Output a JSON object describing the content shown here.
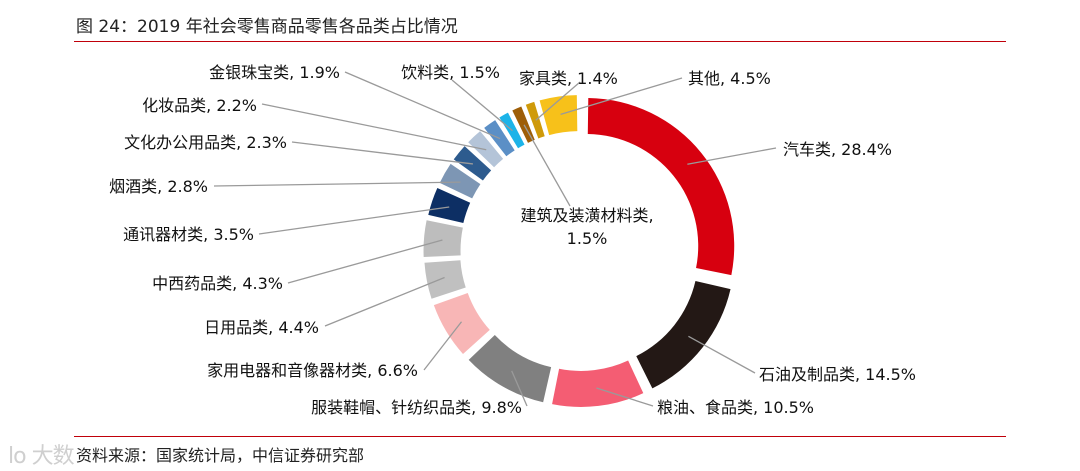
{
  "header": {
    "title": "图 24：2019 年社会零售商品零售各品类占比情况"
  },
  "footer": {
    "source": "资料来源：国家统计局，中信证券研究部",
    "watermark": "lo 大数"
  },
  "chart_data": {
    "type": "pie",
    "variant": "donut",
    "title": "图 24：2019 年社会零售商品零售各品类占比情况",
    "unit": "%",
    "slices": [
      {
        "label": "汽车类",
        "value": 28.4,
        "color": "#d7000f"
      },
      {
        "label": "石油及制品类",
        "value": 14.5,
        "color": "#231815"
      },
      {
        "label": "粮油、食品类",
        "value": 10.5,
        "color": "#f45d73"
      },
      {
        "label": "服装鞋帽、针纺织品类",
        "value": 9.8,
        "color": "#808080"
      },
      {
        "label": "家用电器和音像器材类",
        "value": 6.6,
        "color": "#f8b6b6"
      },
      {
        "label": "日用品类",
        "value": 4.4,
        "color": "#c0c0c0"
      },
      {
        "label": "中西药品类",
        "value": 4.3,
        "color": "#ffffff"
      },
      {
        "label": "通讯器材类",
        "value": 3.5,
        "color": "#0d2f64"
      },
      {
        "label": "烟酒类",
        "value": 2.8,
        "color": "#7d96b4"
      },
      {
        "label": "文化办公用品类",
        "value": 2.3,
        "color": "#2d5b8e"
      },
      {
        "label": "化妆品类",
        "value": 2.2,
        "color": "#b4c4d8"
      },
      {
        "label": "金银珠宝类",
        "value": 1.9,
        "color": "#5b8fc6"
      },
      {
        "label": "饮料类",
        "value": 1.5,
        "color": "#1cb3e8"
      },
      {
        "label": "建筑及装潢材料类",
        "value": 1.5,
        "color": "#9e5e08"
      },
      {
        "label": "家具类",
        "value": 1.4,
        "color": "#cf9a0a"
      },
      {
        "label": "其他",
        "value": 4.5,
        "color": "#f7c11a"
      }
    ]
  }
}
